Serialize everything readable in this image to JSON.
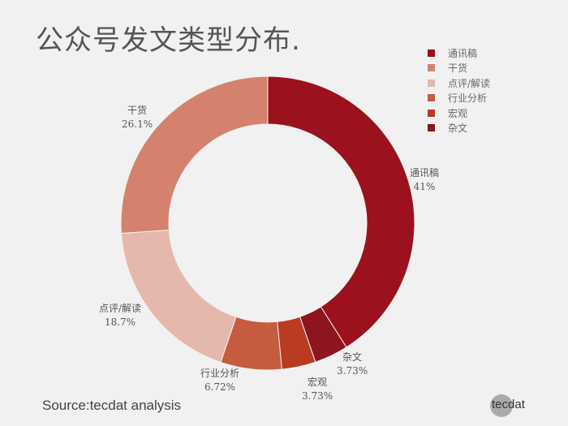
{
  "title": "公众号发文类型分布.",
  "source": "Source:tecdat analysis",
  "logo": "tecdat",
  "chart_data": {
    "type": "pie",
    "donut": true,
    "title": "公众号发文类型分布.",
    "legend_position": "top-right",
    "categories": [
      "通讯稿",
      "干货",
      "点评/解读",
      "行业分析",
      "宏观",
      "杂文"
    ],
    "values": [
      41,
      26.1,
      18.7,
      6.72,
      3.73,
      3.73
    ],
    "labels": [
      "41%",
      "26.1%",
      "18.7%",
      "6.72%",
      "3.73%",
      "3.73%"
    ],
    "colors": [
      "#9b111e",
      "#d4826e",
      "#e4b8ac",
      "#c65b3f",
      "#b83b22",
      "#8e1420"
    ],
    "draw_order": [
      0,
      5,
      4,
      3,
      2,
      1
    ]
  }
}
